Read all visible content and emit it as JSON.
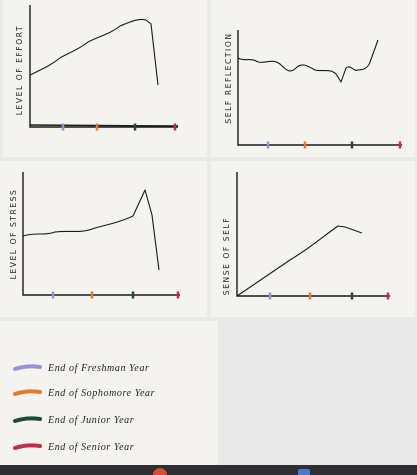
{
  "panels": [
    {
      "y_axis_label": "LEVEL OF EFFORT"
    },
    {
      "y_axis_label": "SELF REFLECTION"
    },
    {
      "y_axis_label": "LEVEL OF STRESS"
    },
    {
      "y_axis_label": "SENSE OF SELF"
    }
  ],
  "legend": [
    {
      "label": "End of Freshman Year",
      "color": "#9b8fd6"
    },
    {
      "label": "End of Sophomore Year",
      "color": "#e8782a"
    },
    {
      "label": "End of Junior Year",
      "color": "#1f4a38"
    },
    {
      "label": "End of Senior Year",
      "color": "#c92a4c"
    }
  ]
}
